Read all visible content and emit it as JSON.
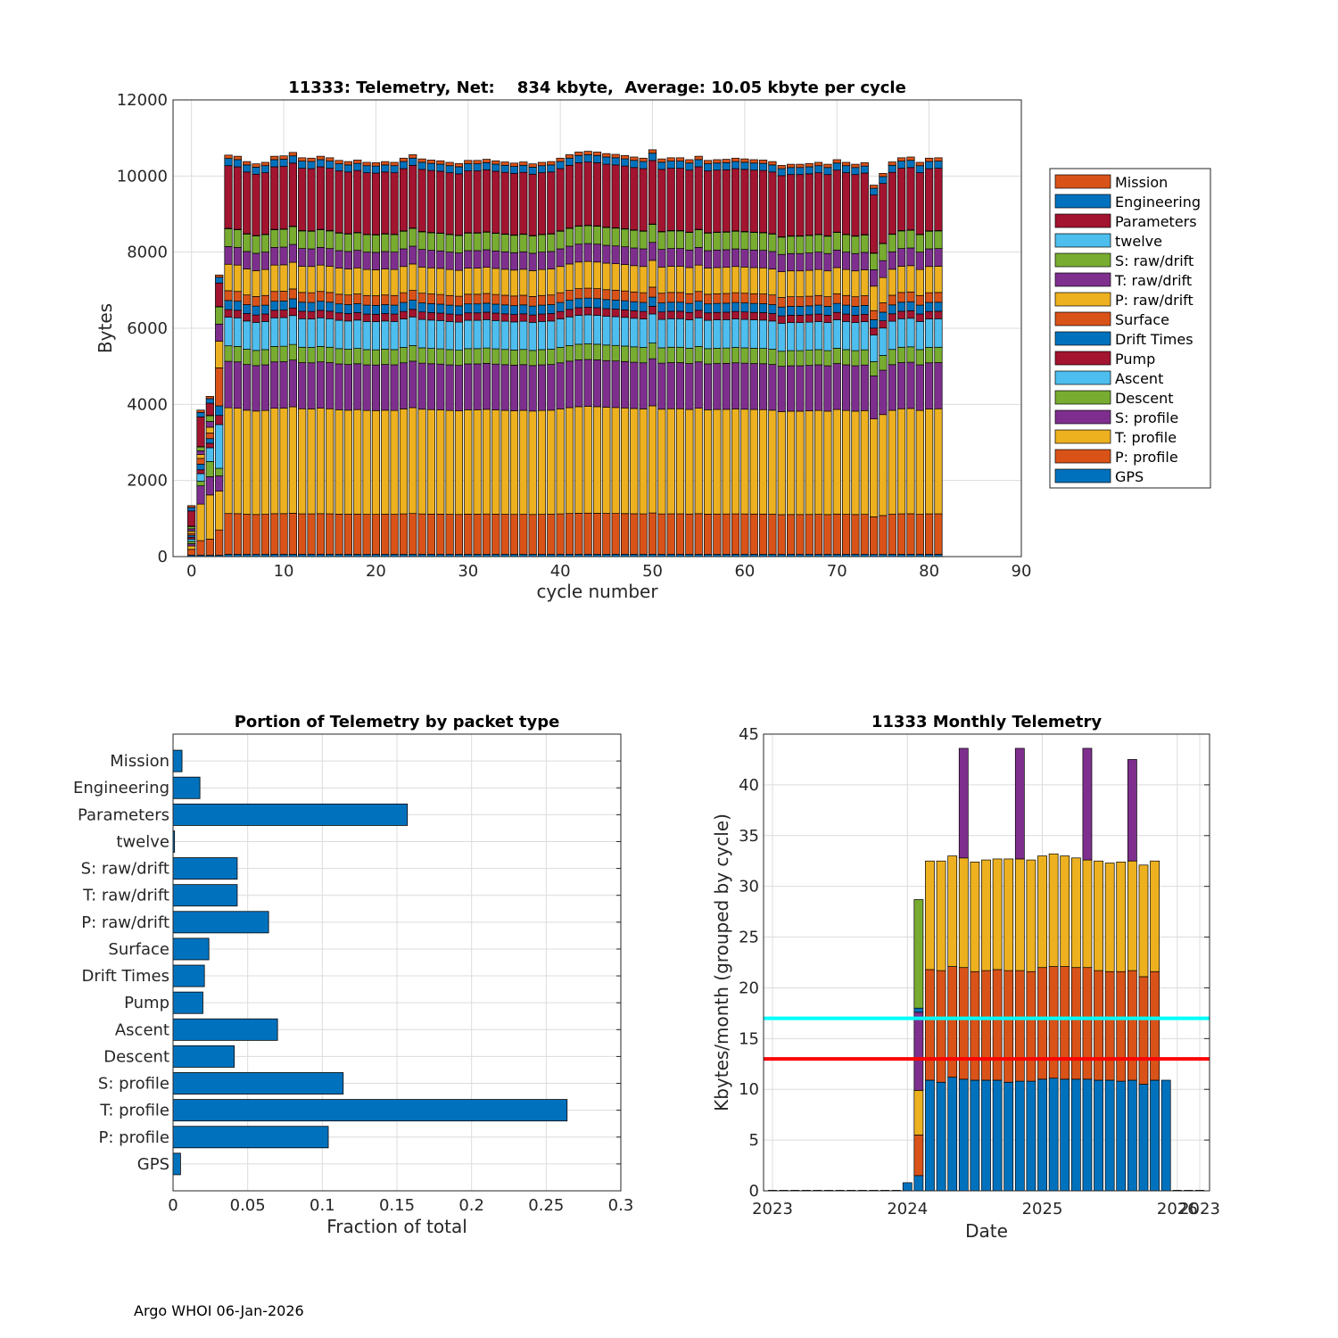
{
  "footer": "Argo WHOI 06-Jan-2026",
  "chart_data": [
    {
      "id": "telemetry_by_cycle",
      "type": "bar",
      "stacked": true,
      "title": "11333: Telemetry, Net:    834 kbyte,  Average: 10.05 kbyte per cycle",
      "xlabel": "cycle number",
      "ylabel": "Bytes",
      "xlim": [
        -2,
        90
      ],
      "ylim": [
        0,
        12000
      ],
      "xticks": [
        0,
        10,
        20,
        30,
        40,
        50,
        60,
        70,
        80,
        90
      ],
      "yticks": [
        0,
        2000,
        4000,
        6000,
        8000,
        10000,
        12000
      ],
      "grid": true,
      "legend_position": "outside-right",
      "legend_order": [
        "Mission",
        "Engineering",
        "Parameters",
        "twelve",
        "S: raw/drift",
        "T: raw/drift",
        "P: raw/drift",
        "Surface",
        "Drift Times",
        "Pump",
        "Ascent",
        "Descent",
        "S: profile",
        "T: profile",
        "P: profile",
        "GPS"
      ],
      "stack_order": [
        "GPS",
        "P: profile",
        "T: profile",
        "S: profile",
        "Descent",
        "Ascent",
        "Pump",
        "Drift Times",
        "Surface",
        "P: raw/drift",
        "T: raw/drift",
        "S: raw/drift",
        "twelve",
        "Parameters",
        "Engineering",
        "Mission"
      ],
      "colors": {
        "Mission": "#D95319",
        "Engineering": "#0072BD",
        "Parameters": "#A2142F",
        "twelve": "#4DBEEE",
        "S: raw/drift": "#77AC30",
        "T: raw/drift": "#7E2F8E",
        "P: raw/drift": "#EDB120",
        "Surface": "#D95319",
        "Drift Times": "#0072BD",
        "Pump": "#A2142F",
        "Ascent": "#4DBEEE",
        "Descent": "#77AC30",
        "S: profile": "#7E2F8E",
        "T: profile": "#EDB120",
        "P: profile": "#D95319",
        "GPS": "#0072BD"
      },
      "cycles": [
        0,
        81
      ],
      "early_cycles": [
        {
          "cycle": 0,
          "totals": {
            "GPS": 40,
            "P: profile": 150,
            "T: profile": 90,
            "S: profile": 60,
            "Descent": 60,
            "Ascent": 60,
            "Pump": 50,
            "Drift Times": 50,
            "Surface": 50,
            "P: raw/drift": 60,
            "T: raw/drift": 60,
            "S: raw/drift": 60,
            "twelve": 10,
            "Parameters": 400,
            "Engineering": 90,
            "Mission": 50
          }
        },
        {
          "cycle": 1,
          "totals": {
            "GPS": 40,
            "P: profile": 380,
            "T: profile": 960,
            "S: profile": 480,
            "Descent": 120,
            "Ascent": 200,
            "Pump": 100,
            "Drift Times": 150,
            "Surface": 150,
            "P: raw/drift": 100,
            "T: raw/drift": 100,
            "S: raw/drift": 100,
            "twelve": 10,
            "Parameters": 780,
            "Engineering": 120,
            "Mission": 60
          }
        },
        {
          "cycle": 2,
          "totals": {
            "GPS": 40,
            "P: profile": 420,
            "T: profile": 1160,
            "S: profile": 480,
            "Descent": 400,
            "Ascent": 360,
            "Pump": 120,
            "Drift Times": 120,
            "Surface": 150,
            "P: raw/drift": 150,
            "T: raw/drift": 150,
            "S: raw/drift": 150,
            "twelve": 10,
            "Parameters": 320,
            "Engineering": 120,
            "Mission": 60
          }
        },
        {
          "cycle": 3,
          "totals": {
            "GPS": 40,
            "P: profile": 660,
            "T: profile": 1020,
            "S: profile": 400,
            "Descent": 200,
            "Ascent": 1150,
            "Pump": 240,
            "Drift Times": 250,
            "Surface": 1000,
            "P: raw/drift": 700,
            "T: raw/drift": 450,
            "S: raw/drift": 450,
            "twelve": 10,
            "Parameters": 620,
            "Engineering": 150,
            "Mission": 60
          }
        }
      ],
      "typical_cycle": {
        "GPS": 60,
        "P: profile": 1080,
        "T: profile": 2800,
        "S: profile": 1230,
        "Descent": 410,
        "Ascent": 760,
        "Pump": 200,
        "Drift Times": 240,
        "Surface": 260,
        "P: raw/drift": 700,
        "T: raw/drift": 470,
        "S: raw/drift": 470,
        "twelve": 10,
        "Parameters": 1660,
        "Engineering": 190,
        "Mission": 90
      },
      "cycle_totals": [
        1430,
        3830,
        4270,
        7480,
        10550,
        10520,
        10380,
        10320,
        10360,
        10520,
        10530,
        10620,
        10480,
        10470,
        10520,
        10480,
        10410,
        10380,
        10420,
        10360,
        10350,
        10380,
        10360,
        10470,
        10560,
        10450,
        10420,
        10400,
        10360,
        10330,
        10410,
        10410,
        10440,
        10400,
        10370,
        10340,
        10370,
        10320,
        10360,
        10380,
        10470,
        10560,
        10630,
        10650,
        10630,
        10590,
        10570,
        10540,
        10500,
        10470,
        10690,
        10450,
        10480,
        10480,
        10430,
        10520,
        10410,
        10430,
        10440,
        10470,
        10450,
        10430,
        10420,
        10380,
        10280,
        10310,
        10310,
        10330,
        10360,
        10310,
        10430,
        10360,
        10310,
        10350,
        9760,
        10070,
        10370,
        10480,
        10500,
        10360,
        10470,
        10480
      ],
      "annotation": "Bars for cycles 4-81 use typical_cycle composition scaled to cycle_totals"
    },
    {
      "id": "portion_by_packet",
      "type": "bar",
      "orientation": "horizontal",
      "title": "Portion of Telemetry by packet type",
      "xlabel": "Fraction of total",
      "xlim": [
        0,
        0.3
      ],
      "xticks": [
        0,
        0.05,
        0.1,
        0.15,
        0.2,
        0.25,
        0.3
      ],
      "xtick_labels": [
        "0",
        "0.05",
        "0.1",
        "0.15",
        "0.2",
        "0.25",
        "0.3"
      ],
      "grid": true,
      "color": "#0072BD",
      "categories": [
        "Mission",
        "Engineering",
        "Parameters",
        "twelve",
        "S: raw/drift",
        "T: raw/drift",
        "P: raw/drift",
        "Surface",
        "Drift Times",
        "Pump",
        "Ascent",
        "Descent",
        "S: profile",
        "T: profile",
        "P: profile",
        "GPS"
      ],
      "values": [
        0.006,
        0.018,
        0.157,
        0.001,
        0.043,
        0.043,
        0.064,
        0.024,
        0.021,
        0.02,
        0.07,
        0.041,
        0.114,
        0.264,
        0.104,
        0.005
      ]
    },
    {
      "id": "monthly_telemetry",
      "type": "bar",
      "stacked": true,
      "title": "11333 Monthly Telemetry",
      "xlabel": "Date",
      "ylabel": "Kbytes/month (grouped by cycle)",
      "ylim": [
        0,
        45
      ],
      "yticks": [
        0,
        5,
        10,
        15,
        20,
        25,
        30,
        35,
        40,
        45
      ],
      "xtick_labels": [
        "2023",
        "2024",
        "2025",
        "2026",
        "2023"
      ],
      "grid": true,
      "colors": {
        "base": "#0072BD",
        "mid": "#D95319",
        "top": "#EDB120",
        "extra": "#7E2F8E",
        "green": "#77AC30"
      },
      "reference_lines": [
        {
          "label": "cyan",
          "value": 17,
          "color": "#00FFFF"
        },
        {
          "label": "red",
          "value": 13,
          "color": "#FF0000"
        }
      ],
      "months_from_2023": [
        0,
        38
      ],
      "bars": [
        {
          "month": 12,
          "segments": [
            0.8
          ]
        },
        {
          "month": 13,
          "segments": [
            1.5,
            4.0,
            4.4,
            7.7,
            0.4,
            10.7
          ]
        },
        {
          "month": 14,
          "segments": [
            10.9,
            10.9,
            10.7
          ]
        },
        {
          "month": 15,
          "segments": [
            10.7,
            11.0,
            10.8
          ]
        },
        {
          "month": 16,
          "segments": [
            11.2,
            10.9,
            10.9
          ]
        },
        {
          "month": 17,
          "segments": [
            11.0,
            11.0,
            10.8,
            10.8
          ]
        },
        {
          "month": 18,
          "segments": [
            10.9,
            10.7,
            10.8
          ]
        },
        {
          "month": 19,
          "segments": [
            10.9,
            10.8,
            10.9
          ]
        },
        {
          "month": 20,
          "segments": [
            10.9,
            10.9,
            10.9
          ]
        },
        {
          "month": 21,
          "segments": [
            10.7,
            11.0,
            11.0
          ]
        },
        {
          "month": 22,
          "segments": [
            10.8,
            10.9,
            11.0,
            10.9
          ]
        },
        {
          "month": 23,
          "segments": [
            10.8,
            10.8,
            11.0
          ]
        },
        {
          "month": 24,
          "segments": [
            11.0,
            11.0,
            11.0
          ]
        },
        {
          "month": 25,
          "segments": [
            11.1,
            11.0,
            11.1
          ]
        },
        {
          "month": 26,
          "segments": [
            11.0,
            11.1,
            10.9
          ]
        },
        {
          "month": 27,
          "segments": [
            11.0,
            11.0,
            10.8
          ]
        },
        {
          "month": 28,
          "segments": [
            11.0,
            11.0,
            10.6,
            11.0
          ]
        },
        {
          "month": 29,
          "segments": [
            10.9,
            10.8,
            10.8
          ]
        },
        {
          "month": 30,
          "segments": [
            10.9,
            10.7,
            10.7
          ]
        },
        {
          "month": 31,
          "segments": [
            10.8,
            10.8,
            10.8
          ]
        },
        {
          "month": 32,
          "segments": [
            10.9,
            10.8,
            10.8,
            10.0
          ]
        },
        {
          "month": 33,
          "segments": [
            10.5,
            10.6,
            11.0
          ]
        },
        {
          "month": 34,
          "segments": [
            10.9,
            10.7,
            10.9
          ]
        },
        {
          "month": 35,
          "segments": [
            10.9
          ]
        }
      ],
      "zero_bars": [
        0,
        11,
        36,
        38
      ]
    }
  ]
}
